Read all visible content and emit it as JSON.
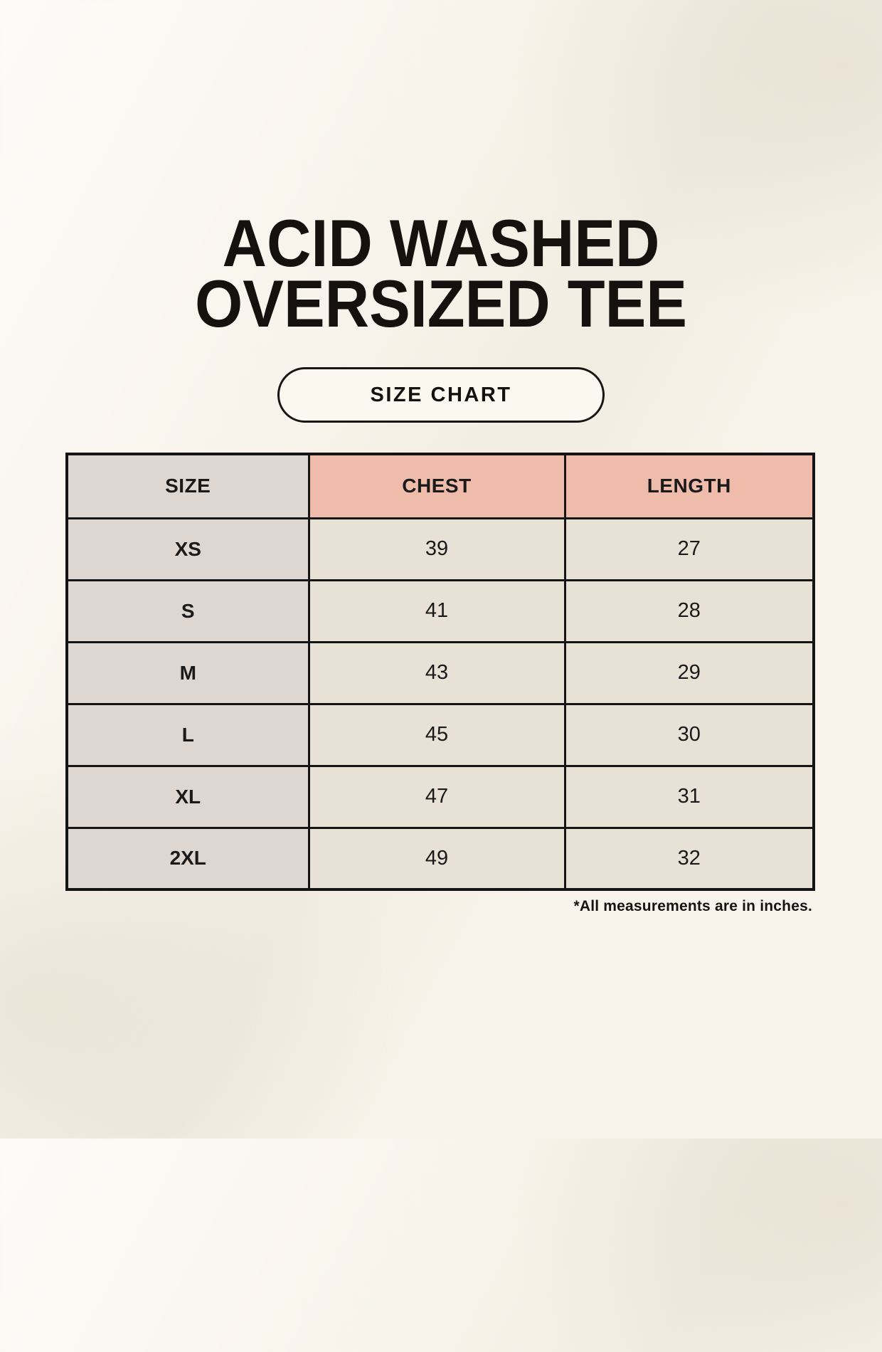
{
  "header": {
    "title_line1": "ACID WASHED",
    "title_line2": "OVERSIZED TEE",
    "badge_label": "SIZE CHART"
  },
  "footer": {
    "note": "*All measurements are in inches."
  },
  "colors": {
    "background": "#f8f4eb",
    "header_accent_salmon": "#efbcac",
    "header_neutral_taupe": "#ded6d0",
    "cell_cream": "#e8e1d5",
    "border_black": "#141414",
    "text": "#1a1a1a"
  },
  "chart_data": {
    "type": "table",
    "title": "ACID WASHED OVERSIZED TEE",
    "subtitle": "SIZE CHART",
    "units": "inches",
    "columns": [
      "SIZE",
      "CHEST",
      "LENGTH"
    ],
    "rows": [
      [
        "XS",
        "39",
        "27"
      ],
      [
        "S",
        "41",
        "28"
      ],
      [
        "M",
        "43",
        "29"
      ],
      [
        "L",
        "45",
        "30"
      ],
      [
        "XL",
        "47",
        "31"
      ],
      [
        "2XL",
        "49",
        "32"
      ]
    ],
    "note": "*All measurements are in inches."
  }
}
